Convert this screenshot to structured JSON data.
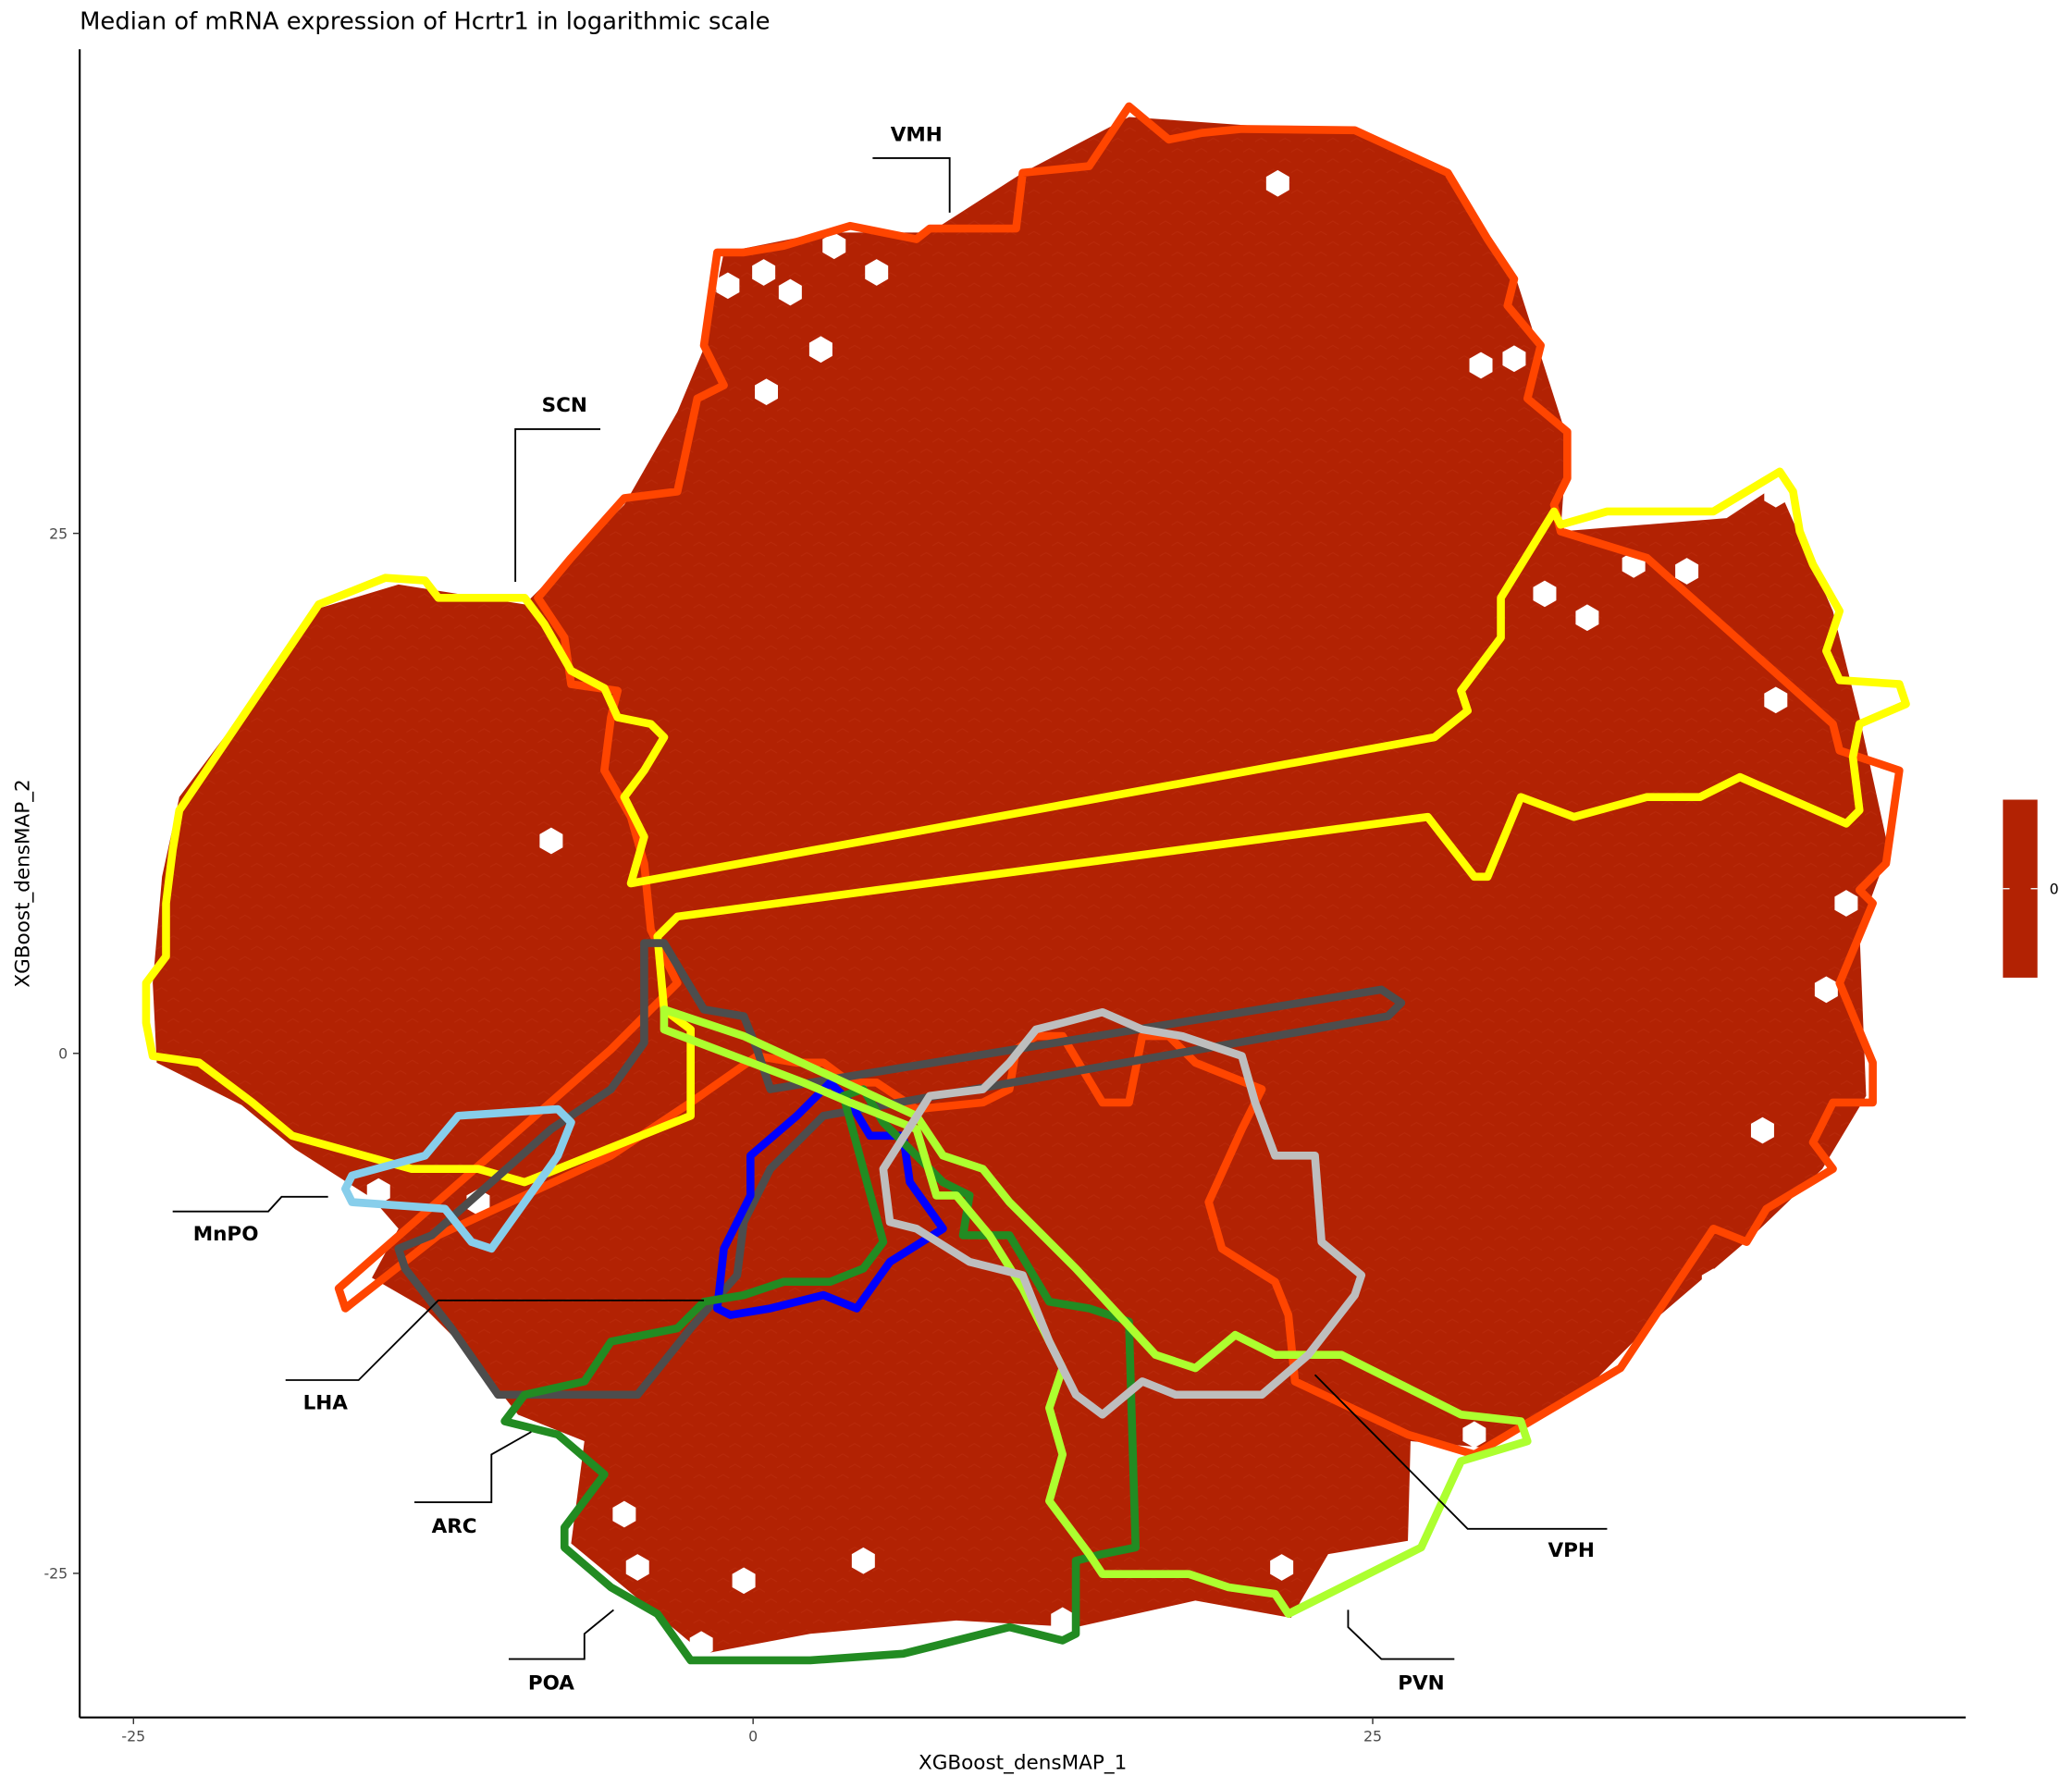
{
  "chart_data": {
    "type": "heatmap",
    "subtype": "hexbin",
    "title": "Median of mRNA expression of Hcrtr1 in logarithmic scale",
    "xlabel": "XGBoost_densMAP_1",
    "ylabel": "XGBoost_densMAP_2",
    "x_ticks": [
      "-25",
      "0",
      "25"
    ],
    "y_ticks": [
      "25",
      "0",
      "-25"
    ],
    "x_tick_values": [
      -25,
      0,
      25
    ],
    "y_tick_values": [
      25,
      0,
      -25
    ],
    "xlim": [
      -27,
      49
    ],
    "ylim": [
      -32,
      48
    ],
    "grid": false,
    "fill_value_all_bins": 0,
    "fill_color": "#B22203",
    "legend": {
      "placement": "right",
      "type": "colorbar",
      "labels": [
        "0"
      ],
      "color": "#B22203"
    },
    "regions": [
      {
        "name": "VMH",
        "color": "#FF4500"
      },
      {
        "name": "SCN",
        "color": "#FFFF00"
      },
      {
        "name": "MnPO",
        "color": "#87CEEB"
      },
      {
        "name": "LHA",
        "color": "#4D4D4D"
      },
      {
        "name": "ARC",
        "color": "#228B22"
      },
      {
        "name": "POA",
        "color": "#0000FF"
      },
      {
        "name": "PVN",
        "color": "#ADFF2F"
      },
      {
        "name": "VPH",
        "color": "#BEBEBE"
      }
    ]
  }
}
